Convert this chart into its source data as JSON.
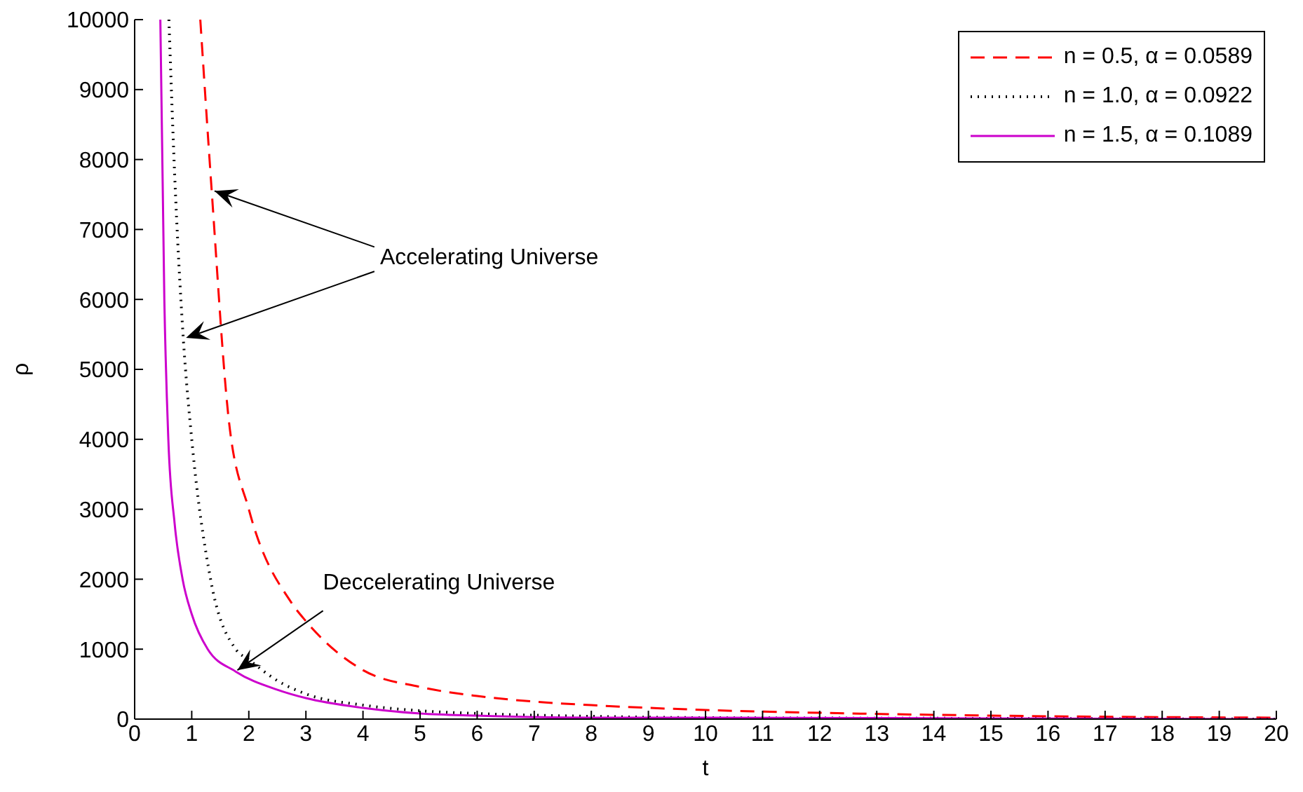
{
  "chart_data": {
    "type": "line",
    "xlabel": "t",
    "ylabel": "ρ",
    "xlim": [
      0,
      20
    ],
    "ylim": [
      0,
      10000
    ],
    "xticks": [
      0,
      1,
      2,
      3,
      4,
      5,
      6,
      7,
      8,
      9,
      10,
      11,
      12,
      13,
      14,
      15,
      16,
      17,
      18,
      19,
      20
    ],
    "yticks": [
      0,
      1000,
      2000,
      3000,
      4000,
      5000,
      6000,
      7000,
      8000,
      9000,
      10000
    ],
    "legend": "top right",
    "marker": "none",
    "annotations": [
      {
        "text": "Accelerating Universe",
        "x": 1.4,
        "y": 7550
      },
      {
        "text": "Deccelerating Universe",
        "x": 1.8,
        "y": 700
      }
    ],
    "series": [
      {
        "name": "n = 0.5, α = 0.0589",
        "color": "#ff0000",
        "line_style": "dashed",
        "x": [
          1.15,
          1.35,
          1.65,
          2,
          2.75,
          3,
          4,
          5,
          6,
          7,
          8,
          10,
          12,
          15,
          20
        ],
        "values": [
          10000,
          7550,
          4270,
          3000,
          1660,
          1400,
          700,
          460,
          330,
          250,
          200,
          130,
          90,
          50,
          20
        ]
      },
      {
        "name": "n = 1.0, α = 0.0922",
        "color": "#000000",
        "line_style": "dotted",
        "x": [
          0.6,
          0.7,
          0.85,
          1,
          1.33,
          1.77,
          2,
          2.5,
          3,
          4,
          5,
          6,
          8,
          10,
          15,
          20
        ],
        "values": [
          10000,
          7800,
          5470,
          4000,
          2000,
          1000,
          850,
          550,
          360,
          200,
          120,
          80,
          40,
          20,
          10,
          0
        ]
      },
      {
        "name": "n = 1.5, α = 0.1089",
        "color": "#cc00cc",
        "line_style": "solid",
        "x": [
          0.45,
          0.52,
          0.59,
          0.7,
          0.84,
          1,
          1.28,
          1.77,
          2.5,
          3,
          4,
          5,
          6,
          8,
          10,
          15,
          20
        ],
        "values": [
          10000,
          6000,
          4000,
          2800,
          2000,
          1500,
          1000,
          680,
          420,
          300,
          160,
          80,
          50,
          20,
          20,
          10,
          0
        ]
      }
    ]
  }
}
